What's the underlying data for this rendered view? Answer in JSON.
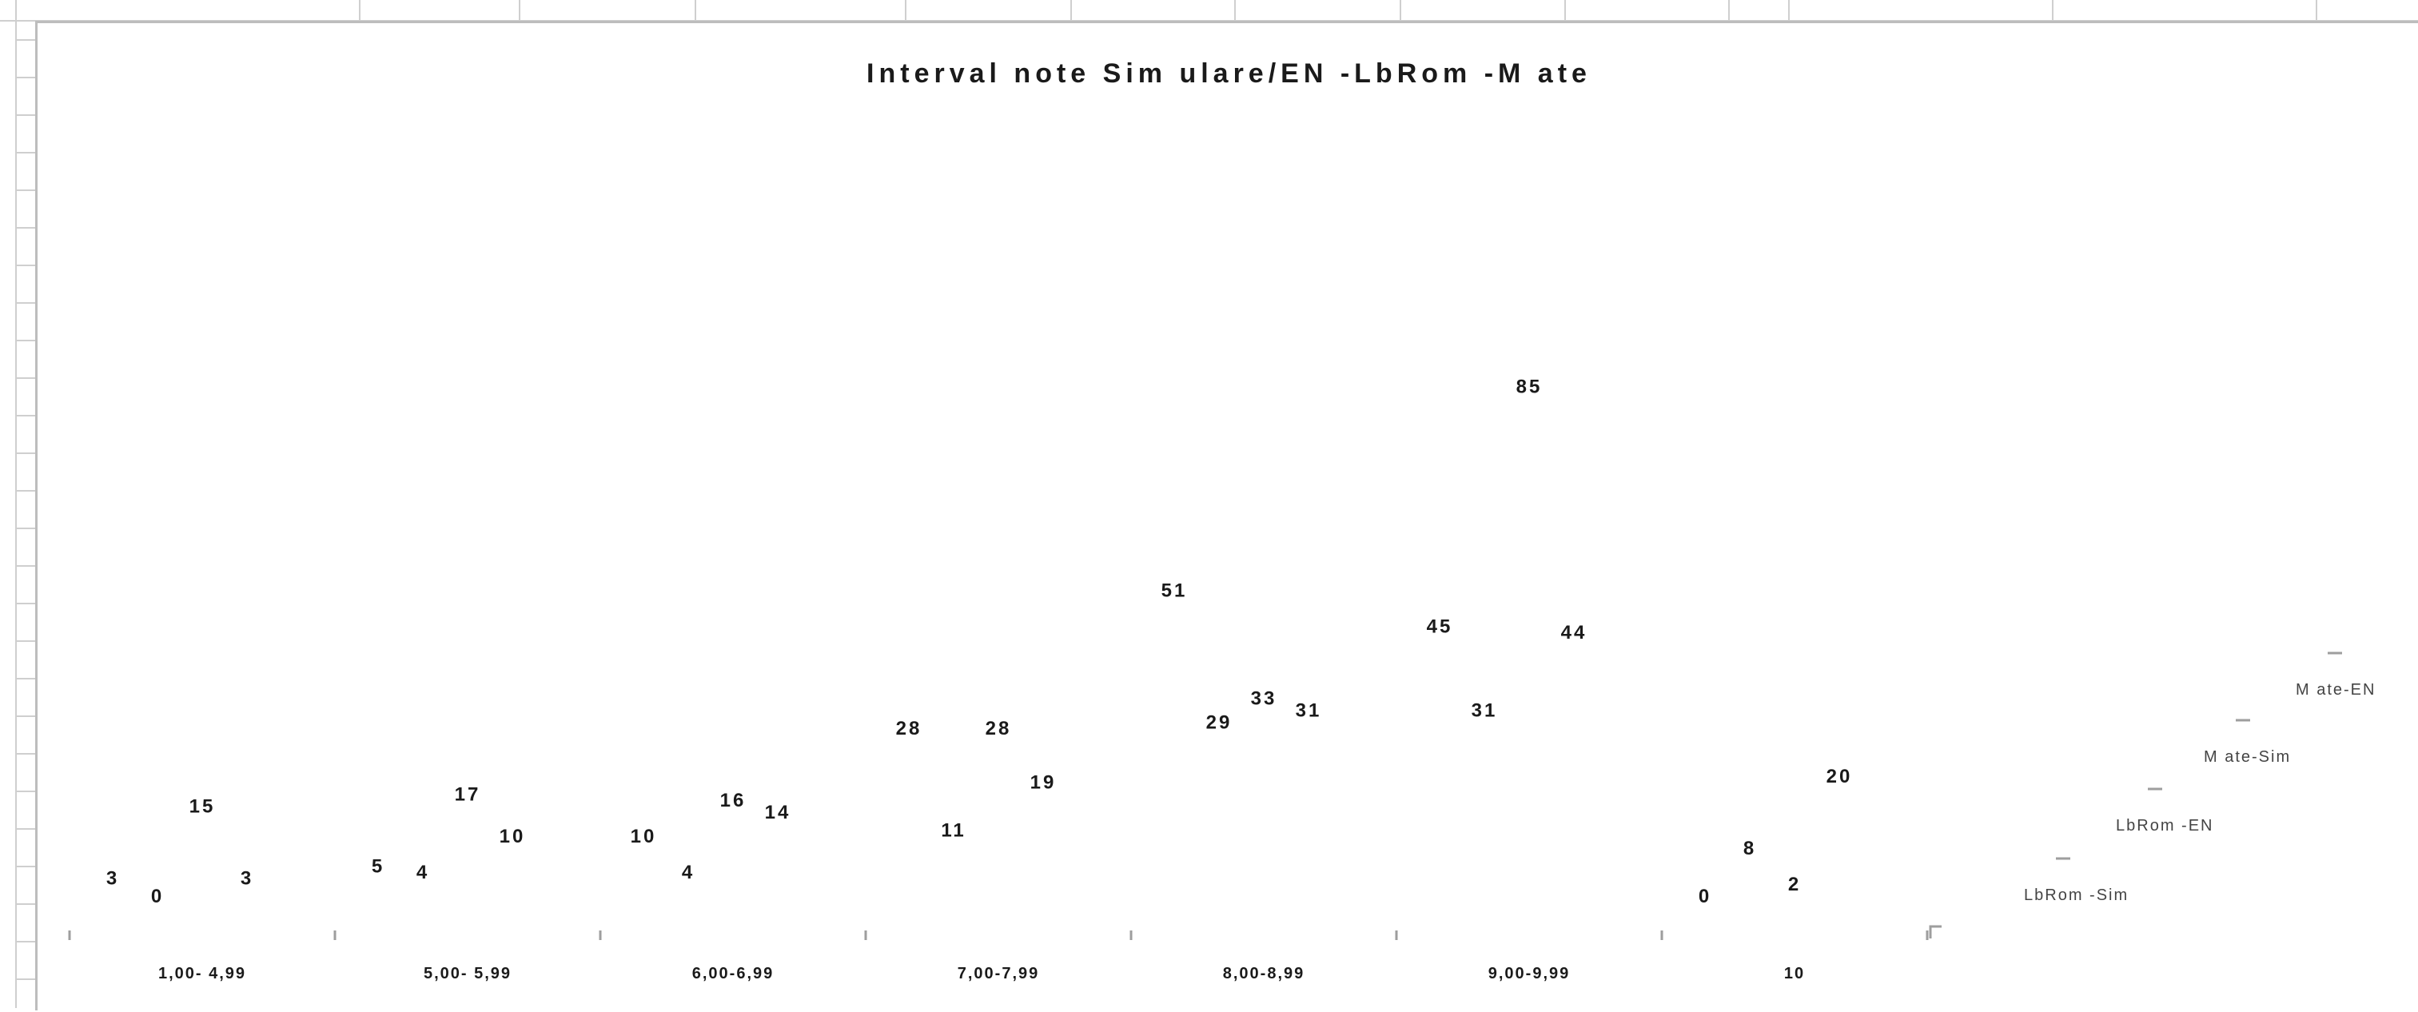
{
  "chart_data": {
    "type": "line",
    "title": "Interval note Sim ulare/EN -LbRom -M ate",
    "categories": [
      "1,00- 4,99",
      "5,00- 5,99",
      "6,00-6,99",
      "7,00-7,99",
      "8,00-8,99",
      "9,00-9,99",
      "10"
    ],
    "series": [
      {
        "name": "LbRom -Sim",
        "values": [
          3,
          5,
          10,
          28,
          51,
          45,
          0
        ]
      },
      {
        "name": "LbRom -EN",
        "values": [
          0,
          4,
          4,
          11,
          29,
          31,
          8
        ]
      },
      {
        "name": "M ate-Sim",
        "values": [
          15,
          17,
          16,
          28,
          33,
          85,
          2
        ]
      },
      {
        "name": "M ate-EN",
        "values": [
          3,
          10,
          14,
          19,
          31,
          44,
          20
        ]
      }
    ],
    "xlabel": "",
    "ylabel": "",
    "grid": false,
    "legend_position": "right",
    "line_visible": false
  },
  "colors": {
    "label_text": "#1a1a1a",
    "legend_text": "#444444",
    "axis": "#9e9e9e",
    "sheet_grid": "#cfcfcf",
    "chart_border": "#bdbdbd"
  }
}
